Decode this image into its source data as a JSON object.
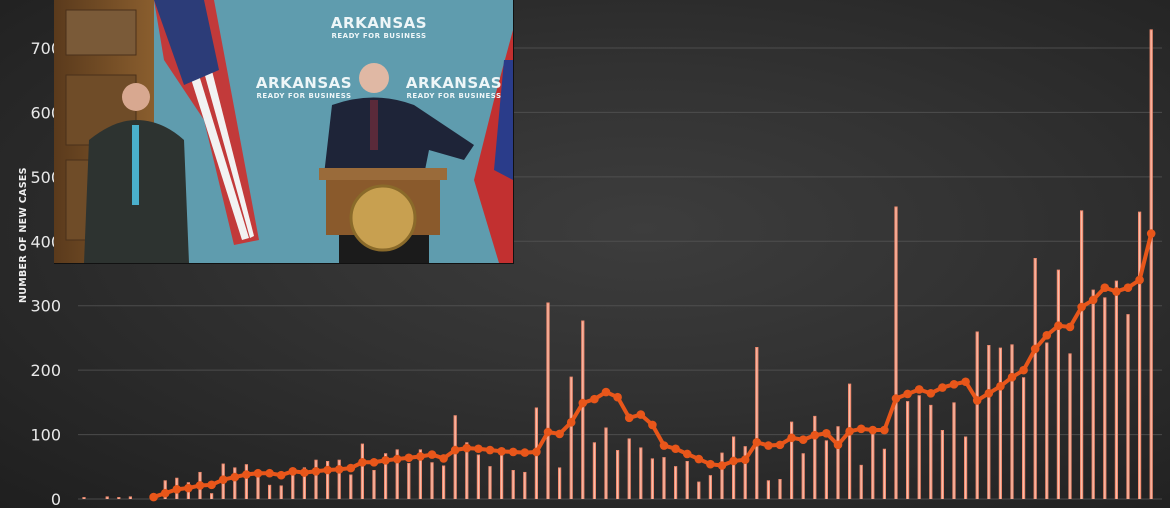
{
  "chart_data": {
    "type": "bar",
    "title": "",
    "xlabel": "",
    "ylabel": "NUMBER OF NEW CASES",
    "ylim": [
      0,
      700
    ],
    "yticks": [
      0,
      100,
      200,
      300,
      400,
      500,
      600,
      700
    ],
    "grid": true,
    "legend": "none",
    "colors": {
      "bars": "#f28c70",
      "average_line": "#e8561a",
      "grid": "#555555",
      "background": "#333333"
    },
    "series": [
      {
        "type": "bar",
        "values": [
          3,
          0,
          4,
          3,
          4,
          0,
          5,
          29,
          33,
          26,
          42,
          9,
          55,
          49,
          54,
          42,
          22,
          21,
          46,
          49,
          61,
          59,
          61,
          38,
          86,
          45,
          71,
          77,
          56,
          77,
          57,
          52,
          130,
          88,
          69,
          51,
          70,
          45,
          42,
          142,
          305,
          49,
          190,
          277,
          88,
          111,
          76,
          94,
          80,
          63,
          65,
          51,
          59,
          27,
          37,
          72,
          97,
          82,
          236,
          29,
          31,
          120,
          71,
          129,
          91,
          113,
          179,
          53,
          104,
          78,
          454,
          152,
          161,
          146,
          107,
          150,
          97,
          260,
          239,
          235,
          240,
          189,
          374,
          243,
          356,
          226,
          448,
          325,
          313,
          339,
          287,
          446,
          729
        ]
      },
      {
        "type": "line",
        "start_index": 6,
        "values": [
          3,
          9,
          15,
          17,
          21,
          22,
          30,
          34,
          38,
          40,
          40,
          37,
          43,
          41,
          43,
          45,
          46,
          48,
          57,
          57,
          60,
          62,
          64,
          66,
          69,
          63,
          76,
          79,
          78,
          76,
          74,
          73,
          72,
          73,
          104,
          101,
          119,
          149,
          155,
          166,
          158,
          126,
          131,
          115,
          83,
          78,
          70,
          62,
          54,
          52,
          59,
          61,
          88,
          83,
          84,
          95,
          92,
          99,
          102,
          84,
          105,
          109,
          107,
          107,
          156,
          163,
          170,
          164,
          173,
          178,
          182,
          153,
          164,
          175,
          189,
          200,
          233,
          254,
          269,
          267,
          298,
          309,
          328,
          322,
          328,
          340,
          412
        ]
      }
    ]
  },
  "video_inset": {
    "backdrop_text": "ARKANSAS",
    "backdrop_tagline": "READY FOR BUSINESS"
  }
}
